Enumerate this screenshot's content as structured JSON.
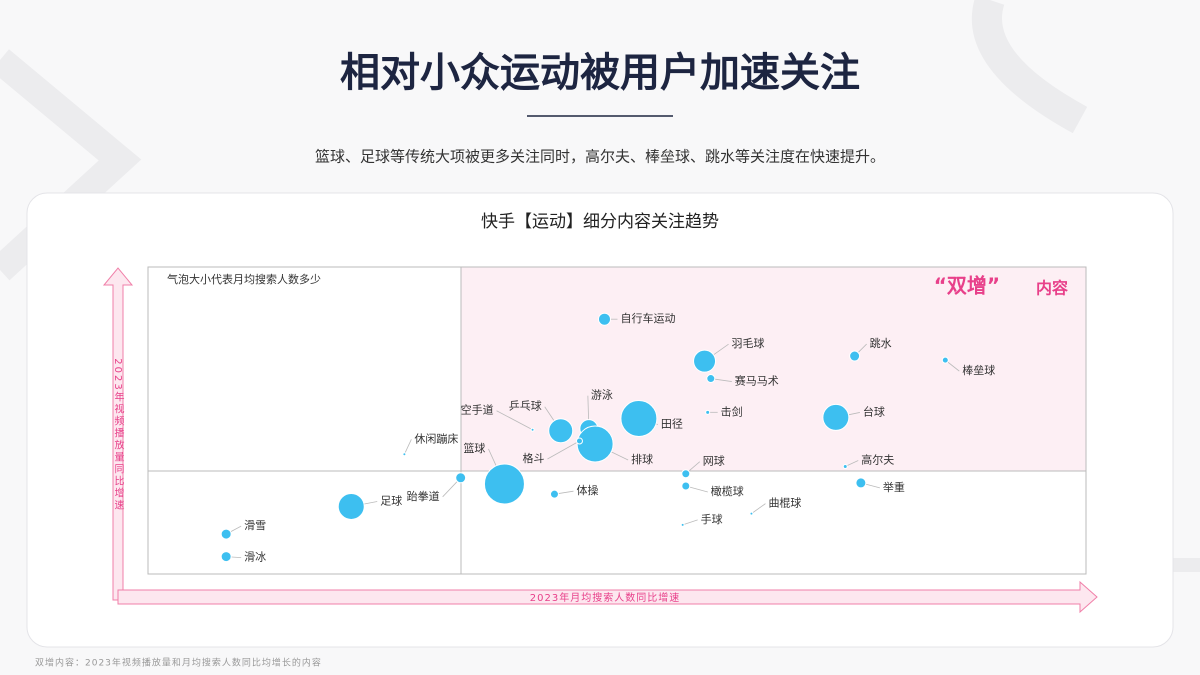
{
  "chart_data": {
    "type": "bubble",
    "title": "相对小众运动被用户加速关注",
    "subtitle": "篮球、足球等传统大项被更多关注同时，高尔夫、棒垒球、跳水等关注度在快速提升。",
    "panel_title": "快手【运动】细分内容关注趋势",
    "size_note": "气泡大小代表月均搜索人数多少",
    "quadrant_label": {
      "quote": "“双增”",
      "text": "内容"
    },
    "x_label": "2023年月均搜索人数同比增速",
    "y_label": "2023年视频播放量同比增速",
    "footnote": "双增内容：2023年视频播放量和月均搜索人数同比均增长的内容",
    "color": "#3dbff0",
    "xlim": [
      -1,
      2
    ],
    "ylim": [
      -1,
      2
    ],
    "points": [
      {
        "name": "自行车运动",
        "x": 0.46,
        "y": 1.49,
        "size": 36
      },
      {
        "name": "羽毛球",
        "x": 0.78,
        "y": 1.08,
        "size": 121
      },
      {
        "name": "赛马马术",
        "x": 0.8,
        "y": 0.91,
        "size": 16
      },
      {
        "name": "跳水",
        "x": 1.26,
        "y": 1.13,
        "size": 25
      },
      {
        "name": "棒垒球",
        "x": 1.55,
        "y": 1.09,
        "size": 9
      },
      {
        "name": "击剑",
        "x": 0.79,
        "y": 0.58,
        "size": 4
      },
      {
        "name": "台球",
        "x": 1.2,
        "y": 0.53,
        "size": 169
      },
      {
        "name": "田径",
        "x": 0.57,
        "y": 0.52,
        "size": 324
      },
      {
        "name": "游泳",
        "x": 0.41,
        "y": 0.42,
        "size": 81
      },
      {
        "name": "乒乓球",
        "x": 0.32,
        "y": 0.4,
        "size": 144
      },
      {
        "name": "空手道",
        "x": 0.23,
        "y": 0.41,
        "size": 2
      },
      {
        "name": "排球",
        "x": 0.43,
        "y": 0.27,
        "size": 324
      },
      {
        "name": "格斗",
        "x": 0.38,
        "y": 0.3,
        "size": 9
      },
      {
        "name": "休闲蹦床",
        "x": -0.18,
        "y": 0.17,
        "size": 2
      },
      {
        "name": "高尔夫",
        "x": 1.23,
        "y": 0.05,
        "size": 4
      },
      {
        "name": "网球",
        "x": 0.72,
        "y": -0.02,
        "size": 16
      },
      {
        "name": "举重",
        "x": 1.28,
        "y": -0.11,
        "size": 25
      },
      {
        "name": "橄榄球",
        "x": 0.72,
        "y": -0.14,
        "size": 16
      },
      {
        "name": "跆拳道",
        "x": 0.0,
        "y": -0.06,
        "size": 25
      },
      {
        "name": "篮球",
        "x": 0.14,
        "y": -0.12,
        "size": 400
      },
      {
        "name": "体操",
        "x": 0.3,
        "y": -0.22,
        "size": 16
      },
      {
        "name": "曲棍球",
        "x": 0.93,
        "y": -0.41,
        "size": 2
      },
      {
        "name": "手球",
        "x": 0.71,
        "y": -0.52,
        "size": 2
      },
      {
        "name": "足球",
        "x": -0.35,
        "y": -0.34,
        "size": 169
      },
      {
        "name": "滑雪",
        "x": -0.75,
        "y": -0.61,
        "size": 25
      },
      {
        "name": "滑冰",
        "x": -0.75,
        "y": -0.83,
        "size": 25
      }
    ]
  }
}
